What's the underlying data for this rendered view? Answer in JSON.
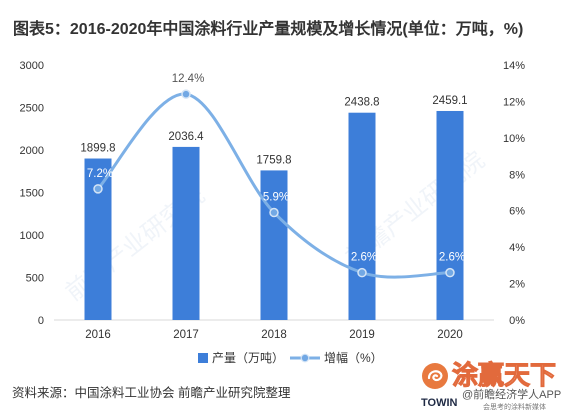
{
  "title": "图表5：2016-2020年中国涂料行业产量规模及增长情况(单位：万吨，%)",
  "chart_data": {
    "type": "bar",
    "categories": [
      "2016",
      "2017",
      "2018",
      "2019",
      "2020"
    ],
    "series": [
      {
        "name": "产量（万吨）",
        "type": "bar",
        "axis": "left",
        "values": [
          1899.8,
          2036.4,
          1759.8,
          2438.8,
          2459.1
        ],
        "data_labels": [
          "1899.8",
          "2036.4",
          "1759.8",
          "2438.8",
          "2459.1"
        ],
        "color": "#3d7ed9"
      },
      {
        "name": "增幅（%）",
        "type": "line",
        "axis": "right",
        "smooth": true,
        "values": [
          7.2,
          12.4,
          5.9,
          2.6,
          2.6
        ],
        "data_labels": [
          "7.2%",
          "12.4%",
          "5.9%",
          "2.6%",
          "2.6%"
        ],
        "color": "#7db0e6"
      }
    ],
    "y_left": {
      "min": 0,
      "max": 3000,
      "ticks": [
        "0",
        "500",
        "1000",
        "1500",
        "2000",
        "2500",
        "3000"
      ]
    },
    "y_right": {
      "min": 0,
      "max": 14,
      "ticks": [
        "0%",
        "2%",
        "4%",
        "6%",
        "8%",
        "10%",
        "12%",
        "14%"
      ]
    },
    "grid": false,
    "legend": "bottom"
  },
  "source": "资料来源：中国涂料工业协会 前瞻产业研究院整理",
  "watermark": "前瞻产业研究院",
  "brand": {
    "name": "涂赢天下",
    "latin": "TOWIN",
    "app": "@前瞻经济学人APP",
    "tagline": "会思考的涂料新媒体",
    "color": "#e8793f"
  }
}
